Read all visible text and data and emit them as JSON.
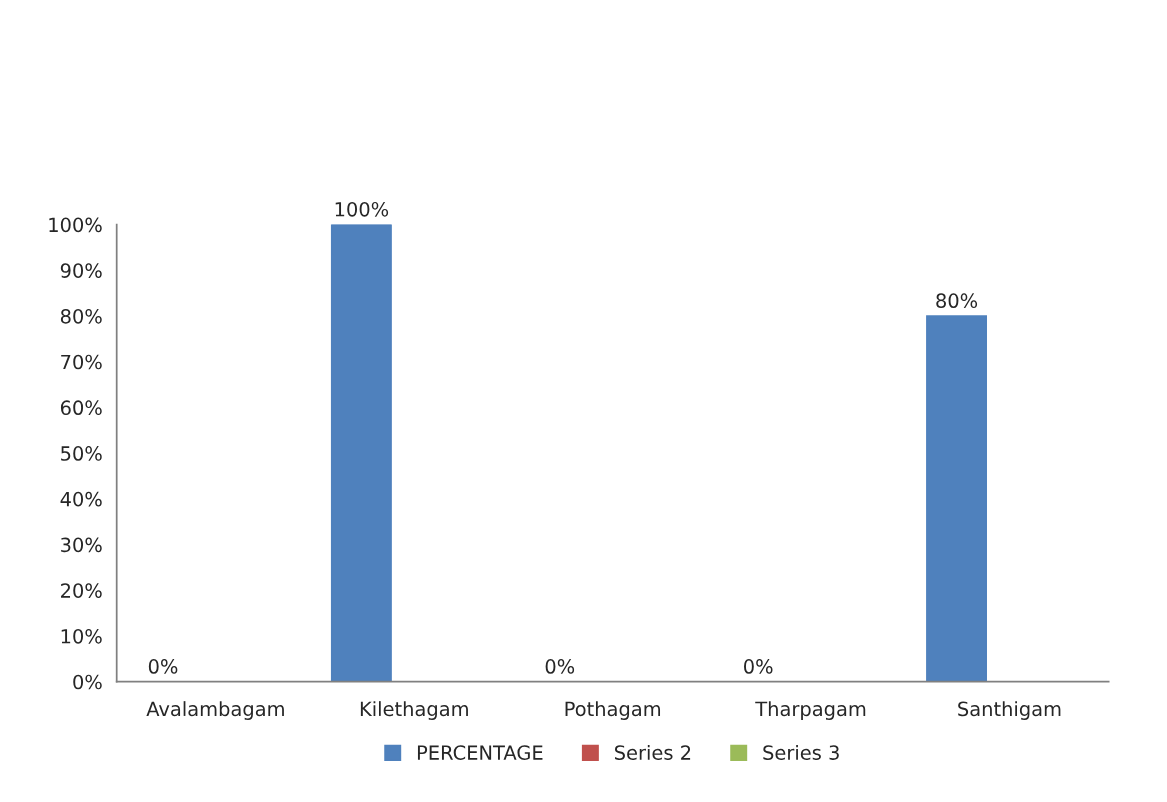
{
  "chart_data": {
    "type": "bar",
    "categories": [
      "Avalambagam",
      "Kilethagam",
      "Pothagam",
      "Tharpagam",
      "Santhigam"
    ],
    "series": [
      {
        "name": "PERCENTAGE",
        "color": "#4f81bd",
        "values": [
          0,
          100,
          0,
          0,
          80
        ],
        "value_labels": [
          "0%",
          "100%",
          "0%",
          "0%",
          "80%"
        ]
      },
      {
        "name": "Series 2",
        "color": "#c0504d",
        "values": [
          null,
          null,
          null,
          null,
          null
        ]
      },
      {
        "name": "Series 3",
        "color": "#9bbb59",
        "values": [
          null,
          null,
          null,
          null,
          null
        ]
      }
    ],
    "ylim": [
      0,
      100
    ],
    "yticks": [
      {
        "value": 0,
        "label": "0%"
      },
      {
        "value": 10,
        "label": "10%"
      },
      {
        "value": 20,
        "label": "20%"
      },
      {
        "value": 30,
        "label": "30%"
      },
      {
        "value": 40,
        "label": "40%"
      },
      {
        "value": 50,
        "label": "50%"
      },
      {
        "value": 60,
        "label": "60%"
      },
      {
        "value": 70,
        "label": "70%"
      },
      {
        "value": 80,
        "label": "80%"
      },
      {
        "value": 90,
        "label": "90%"
      },
      {
        "value": 100,
        "label": "100%"
      }
    ],
    "grid": false,
    "legend": "bottom"
  }
}
